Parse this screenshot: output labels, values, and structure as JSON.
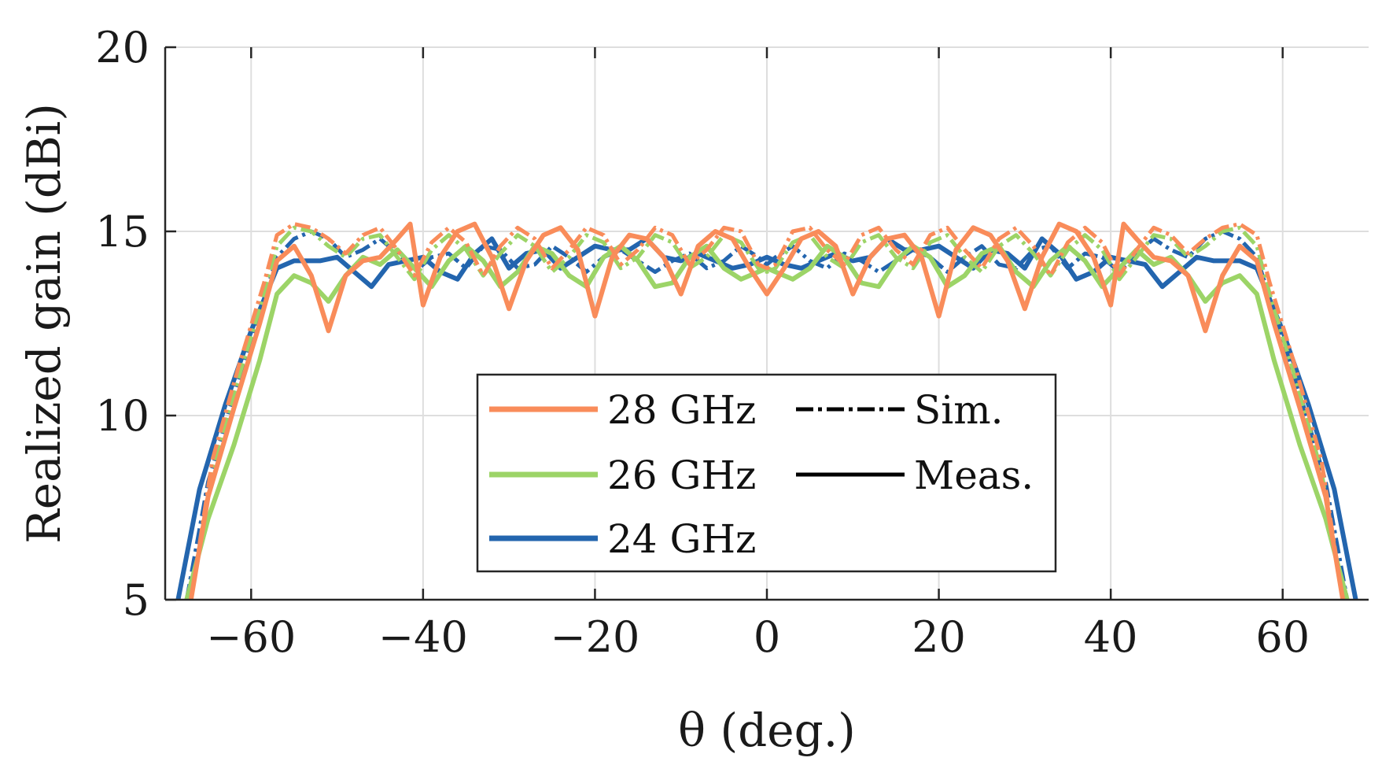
{
  "chart_data": {
    "type": "line",
    "title": "",
    "xlabel": "θ (deg.)",
    "ylabel": "Realized gain (dBi)",
    "xlim": [
      -70,
      70
    ],
    "ylim": [
      5,
      20
    ],
    "xticks": [
      -60,
      -40,
      -20,
      0,
      20,
      40,
      60
    ],
    "yticks": [
      5,
      10,
      15,
      20
    ],
    "xtick_labels": [
      "−60",
      "−40",
      "−20",
      "0",
      "20",
      "40",
      "60"
    ],
    "ytick_labels": [
      "5",
      "10",
      "15",
      "20"
    ],
    "grid": true,
    "legend_position": "center-bottom",
    "legend": {
      "frequency_entries": [
        "28 GHz",
        "26 GHz",
        "24 GHz"
      ],
      "style_entries": [
        "Sim.",
        "Meas."
      ]
    },
    "colors": {
      "28GHz": "#f98c5a",
      "26GHz": "#9cd467",
      "24GHz": "#2365ae",
      "style_key": "#000000"
    },
    "series": [
      {
        "name": "24 GHz Meas.",
        "freq": "24 GHz",
        "style": "Meas.",
        "color_key": "24GHz",
        "x": [
          -68.5,
          -66,
          -63,
          -60,
          -57,
          -55,
          -52,
          -50,
          -48,
          -46,
          -44,
          -42,
          -40,
          -38,
          -36,
          -34,
          -32,
          -30,
          -28,
          -26,
          -24,
          -22,
          -20,
          -18,
          -16,
          -14,
          -12,
          -10,
          -8,
          -6,
          -4,
          -2,
          0,
          2,
          4,
          6,
          8,
          10,
          12,
          14,
          16,
          18,
          20,
          22,
          24,
          26,
          28,
          30,
          32,
          34,
          36,
          38,
          40,
          42,
          44,
          46,
          48,
          50,
          52,
          55,
          57,
          60,
          63,
          66,
          68.5
        ],
        "y": [
          5.0,
          8.0,
          10.3,
          12.3,
          14.0,
          14.2,
          14.2,
          14.3,
          13.9,
          13.5,
          14.1,
          14.2,
          14.3,
          13.9,
          13.7,
          14.4,
          14.8,
          14.0,
          14.4,
          14.5,
          14.0,
          14.3,
          14.6,
          14.5,
          14.5,
          14.8,
          14.3,
          14.2,
          14.4,
          14.2,
          14.0,
          14.1,
          14.3,
          14.1,
          14.0,
          14.2,
          14.4,
          14.2,
          14.3,
          14.8,
          14.5,
          14.5,
          14.6,
          14.3,
          14.0,
          14.5,
          14.4,
          14.0,
          14.8,
          14.4,
          13.7,
          13.9,
          14.3,
          14.2,
          14.1,
          13.5,
          13.9,
          14.3,
          14.2,
          14.2,
          14.0,
          12.3,
          10.3,
          8.0,
          5.0
        ]
      },
      {
        "name": "24 GHz Sim.",
        "freq": "24 GHz",
        "style": "Sim.",
        "color_key": "24GHz",
        "x": [
          -67.5,
          -65,
          -62,
          -59,
          -57,
          -55,
          -53,
          -51,
          -49,
          -47,
          -45,
          -43,
          -41,
          -39,
          -37,
          -35,
          -33,
          -31,
          -29,
          -27,
          -25,
          -23,
          -21,
          -19,
          -17,
          -15,
          -13,
          -11,
          -9,
          -7,
          -5,
          -3,
          -1,
          0,
          1,
          3,
          5,
          7,
          9,
          11,
          13,
          15,
          17,
          19,
          21,
          23,
          25,
          27,
          29,
          31,
          33,
          35,
          37,
          39,
          41,
          43,
          45,
          47,
          49,
          51,
          53,
          55,
          57,
          59,
          62,
          65,
          67.5
        ],
        "y": [
          5.0,
          8.2,
          10.6,
          12.8,
          14.3,
          14.8,
          15.0,
          14.8,
          14.3,
          14.5,
          14.8,
          14.4,
          13.9,
          14.3,
          14.4,
          14.0,
          14.6,
          14.5,
          14.0,
          14.1,
          14.6,
          14.3,
          13.9,
          14.3,
          14.5,
          14.2,
          13.9,
          14.2,
          14.4,
          14.0,
          14.2,
          14.6,
          14.3,
          14.1,
          14.3,
          14.6,
          14.2,
          14.0,
          14.4,
          14.2,
          13.9,
          14.2,
          14.5,
          14.3,
          13.9,
          14.3,
          14.6,
          14.1,
          14.0,
          14.5,
          14.6,
          14.0,
          14.4,
          14.3,
          13.9,
          14.4,
          14.8,
          14.5,
          14.3,
          14.8,
          15.0,
          14.8,
          14.3,
          12.8,
          10.6,
          8.2,
          5.0
        ]
      },
      {
        "name": "26 GHz Meas.",
        "freq": "26 GHz",
        "style": "Meas.",
        "color_key": "26GHz",
        "x": [
          -67.5,
          -65,
          -62,
          -59,
          -57,
          -55,
          -53,
          -51,
          -49,
          -47,
          -45,
          -43,
          -41,
          -39,
          -37,
          -35,
          -33,
          -31,
          -29,
          -27,
          -25,
          -23,
          -21,
          -19,
          -17,
          -15,
          -13,
          -11,
          -9,
          -7,
          -5,
          -3,
          -1,
          0,
          1,
          3,
          5,
          7,
          9,
          11,
          13,
          15,
          17,
          19,
          21,
          23,
          25,
          27,
          29,
          31,
          33,
          35,
          37,
          39,
          41,
          43,
          45,
          47,
          49,
          51,
          53,
          55,
          57,
          59,
          62,
          65,
          67.5
        ],
        "y": [
          5.0,
          7.2,
          9.2,
          11.5,
          13.3,
          13.8,
          13.6,
          13.1,
          13.8,
          14.3,
          14.1,
          14.5,
          14.0,
          13.5,
          14.2,
          14.6,
          14.2,
          13.5,
          13.9,
          14.6,
          14.4,
          13.8,
          13.5,
          14.3,
          14.6,
          14.2,
          13.5,
          13.6,
          14.3,
          14.6,
          14.0,
          13.7,
          13.9,
          14.0,
          13.9,
          13.7,
          14.0,
          14.6,
          14.3,
          13.6,
          13.5,
          14.2,
          14.6,
          14.3,
          13.5,
          13.8,
          14.4,
          14.6,
          13.9,
          13.5,
          14.2,
          14.6,
          14.2,
          13.5,
          14.0,
          14.5,
          14.1,
          14.3,
          13.8,
          13.1,
          13.6,
          13.8,
          13.3,
          11.5,
          9.2,
          7.2,
          5.0
        ]
      },
      {
        "name": "26 GHz Sim.",
        "freq": "26 GHz",
        "style": "Sim.",
        "color_key": "26GHz",
        "x": [
          -67,
          -64.5,
          -61.5,
          -58.5,
          -57,
          -55,
          -53,
          -51,
          -49,
          -47,
          -45,
          -43,
          -41,
          -39,
          -37,
          -35,
          -33,
          -31,
          -29,
          -27,
          -25,
          -23,
          -21,
          -19,
          -17,
          -15,
          -13,
          -11,
          -9,
          -7,
          -5,
          -3,
          -1,
          0,
          1,
          3,
          5,
          7,
          9,
          11,
          13,
          15,
          17,
          19,
          21,
          23,
          25,
          27,
          29,
          31,
          33,
          35,
          37,
          39,
          41,
          43,
          45,
          47,
          49,
          51,
          53,
          55,
          57,
          58.5,
          61.5,
          64.5,
          67
        ],
        "y": [
          5.0,
          8.5,
          11.0,
          13.3,
          14.6,
          15.1,
          15.0,
          14.6,
          14.3,
          14.8,
          14.9,
          14.3,
          13.7,
          14.5,
          14.9,
          14.5,
          13.8,
          14.4,
          14.9,
          14.6,
          13.9,
          14.3,
          14.9,
          14.7,
          14.0,
          14.3,
          14.9,
          14.7,
          14.0,
          14.3,
          14.9,
          14.7,
          14.0,
          13.9,
          14.0,
          14.7,
          14.9,
          14.3,
          14.0,
          14.7,
          14.9,
          14.3,
          14.0,
          14.7,
          14.9,
          14.3,
          13.9,
          14.6,
          14.9,
          14.4,
          13.8,
          14.5,
          14.9,
          14.5,
          13.7,
          14.3,
          14.9,
          14.8,
          14.3,
          14.6,
          15.0,
          15.1,
          14.6,
          13.3,
          11.0,
          8.5,
          5.0
        ]
      },
      {
        "name": "28 GHz Meas.",
        "freq": "28 GHz",
        "style": "Meas.",
        "color_key": "28GHz",
        "x": [
          -67,
          -65,
          -62,
          -59,
          -57,
          -55,
          -53,
          -51,
          -49,
          -47,
          -45,
          -43,
          -41.5,
          -40,
          -38,
          -36,
          -34,
          -32,
          -30,
          -28,
          -26,
          -24,
          -22,
          -20,
          -18,
          -16,
          -14,
          -12,
          -10,
          -8,
          -6,
          -4,
          -2,
          0,
          2,
          4,
          6,
          8,
          10,
          12,
          14,
          16,
          18,
          20,
          22,
          24,
          26,
          28,
          30,
          32,
          34,
          36,
          38,
          40,
          41.5,
          43,
          45,
          47,
          49,
          51,
          53,
          55,
          57,
          59,
          62,
          65,
          67
        ],
        "y": [
          5.0,
          7.8,
          10.2,
          12.5,
          14.2,
          14.6,
          13.8,
          12.3,
          13.8,
          14.2,
          14.3,
          14.8,
          15.2,
          13.0,
          14.3,
          15.0,
          15.2,
          14.3,
          12.9,
          14.2,
          14.9,
          15.1,
          14.5,
          12.7,
          14.3,
          14.9,
          14.8,
          14.3,
          13.3,
          14.6,
          15.0,
          14.8,
          14.0,
          13.3,
          14.0,
          14.8,
          15.0,
          14.6,
          13.3,
          14.3,
          14.8,
          14.9,
          14.3,
          12.7,
          14.5,
          15.1,
          14.9,
          14.2,
          12.9,
          14.3,
          15.2,
          15.0,
          14.3,
          13.0,
          15.2,
          14.8,
          14.3,
          14.2,
          13.8,
          12.3,
          13.8,
          14.6,
          14.2,
          12.5,
          10.2,
          7.8,
          5.0
        ]
      },
      {
        "name": "28 GHz Sim.",
        "freq": "28 GHz",
        "style": "Sim.",
        "color_key": "28GHz",
        "x": [
          -67,
          -64.5,
          -61.5,
          -58.5,
          -57,
          -55,
          -53,
          -51,
          -49,
          -47,
          -45,
          -43,
          -41,
          -39,
          -37,
          -35,
          -33,
          -31,
          -29,
          -27,
          -25,
          -23,
          -21,
          -19,
          -17,
          -15,
          -13,
          -11,
          -9,
          -7,
          -5,
          -3,
          -1,
          0,
          1,
          3,
          5,
          7,
          9,
          11,
          13,
          15,
          17,
          19,
          21,
          23,
          25,
          27,
          29,
          31,
          33,
          35,
          37,
          39,
          41,
          43,
          45,
          47,
          49,
          51,
          53,
          55,
          57,
          58.5,
          61.5,
          64.5,
          67
        ],
        "y": [
          5.0,
          8.8,
          11.3,
          13.6,
          14.9,
          15.2,
          15.1,
          14.8,
          14.4,
          14.9,
          15.1,
          14.5,
          13.8,
          14.7,
          15.1,
          14.7,
          13.8,
          14.6,
          15.1,
          14.8,
          14.0,
          14.5,
          15.1,
          14.9,
          14.1,
          14.5,
          15.1,
          14.9,
          14.1,
          14.5,
          15.1,
          15.0,
          14.1,
          14.0,
          14.1,
          15.0,
          15.1,
          14.5,
          14.1,
          14.9,
          15.1,
          14.5,
          14.1,
          14.9,
          15.1,
          14.5,
          14.0,
          14.8,
          15.1,
          14.6,
          13.8,
          14.7,
          15.1,
          14.7,
          13.8,
          14.5,
          15.1,
          14.9,
          14.4,
          14.8,
          15.1,
          15.2,
          14.9,
          13.6,
          11.3,
          8.8,
          5.0
        ]
      }
    ]
  }
}
